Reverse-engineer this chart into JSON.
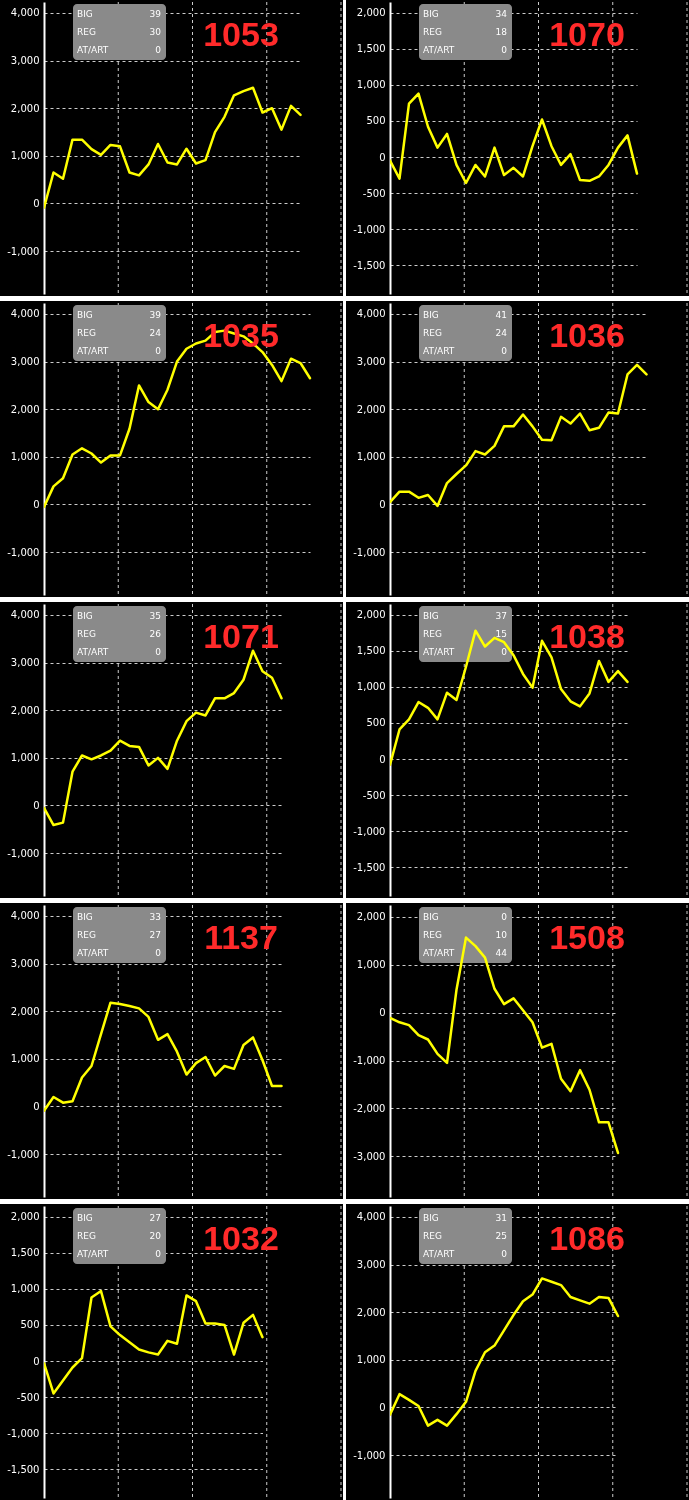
{
  "chart_data": [
    {
      "type": "line",
      "title": "1053",
      "annotations": [
        "BIG",
        "39",
        "REG",
        "30",
        "AT/ART",
        "0"
      ],
      "color": "#ffff00",
      "categories": [
        null,
        null,
        null,
        null,
        null,
        null,
        null,
        null,
        null,
        null,
        null,
        null,
        null,
        null,
        null,
        null,
        null,
        null,
        null,
        null,
        null,
        null,
        null,
        null,
        null,
        null,
        null,
        null
      ],
      "values": [
        -90,
        650,
        520,
        1340,
        1340,
        1140,
        1020,
        1230,
        1200,
        650,
        590,
        820,
        1250,
        860,
        820,
        1150,
        840,
        910,
        1500,
        1820,
        2270,
        2360,
        2430,
        1910,
        2000,
        1550,
        2050,
        1860
      ],
      "ylim": [
        -1900,
        4230
      ],
      "yticks": [
        {
          "value": -1000,
          "label": "-1,000"
        },
        0,
        {
          "value": 1000,
          "label": "1,000"
        },
        {
          "value": 2000,
          "label": "2,000"
        },
        {
          "value": 3000,
          "label": "3,000"
        },
        {
          "value": 4000,
          "label": "4,000"
        }
      ],
      "grid": true,
      "tick_labels": "y"
    },
    {
      "type": "line",
      "title": "1070",
      "annotations": [
        "BIG",
        "34",
        "REG",
        "18",
        "AT/ART",
        "0"
      ],
      "color": "#ffff00",
      "categories": [
        null,
        null,
        null,
        null,
        null,
        null,
        null,
        null,
        null,
        null,
        null,
        null,
        null,
        null,
        null,
        null,
        null,
        null,
        null,
        null,
        null,
        null,
        null,
        null,
        null,
        null,
        null
      ],
      "values": [
        -50,
        -300,
        740,
        880,
        420,
        130,
        320,
        -110,
        -360,
        -110,
        -270,
        130,
        -250,
        -150,
        -270,
        150,
        520,
        150,
        -110,
        40,
        -320,
        -330,
        -270,
        -110,
        130,
        300,
        -230
      ],
      "ylim": [
        -1900,
        2150
      ],
      "yticks": [
        {
          "value": -1500,
          "label": "-1,500"
        },
        {
          "value": -1000,
          "label": "-1,000"
        },
        -500,
        0,
        500,
        {
          "value": 1000,
          "label": "1,000"
        },
        {
          "value": 1500,
          "label": "1,500"
        },
        {
          "value": 2000,
          "label": "2,000"
        }
      ],
      "grid": true,
      "tick_labels": "y"
    },
    {
      "type": "line",
      "title": "1035",
      "annotations": [
        "BIG",
        "39",
        "REG",
        "24",
        "AT/ART",
        "0"
      ],
      "color": "#ffff00",
      "categories": [
        null,
        null,
        null,
        null,
        null,
        null,
        null,
        null,
        null,
        null,
        null,
        null,
        null,
        null,
        null,
        null,
        null,
        null,
        null,
        null,
        null,
        null,
        null,
        null,
        null,
        null,
        null,
        null,
        null
      ],
      "values": [
        -50,
        380,
        550,
        1050,
        1180,
        1070,
        880,
        1030,
        1030,
        1590,
        2500,
        2150,
        2000,
        2410,
        3000,
        3270,
        3380,
        3440,
        3620,
        3650,
        3590,
        3530,
        3380,
        3200,
        2930,
        2590,
        3060,
        2970,
        2650
      ],
      "ylim": [
        -1900,
        4230
      ],
      "yticks": [
        {
          "value": -1000,
          "label": "-1,000"
        },
        0,
        {
          "value": 1000,
          "label": "1,000"
        },
        {
          "value": 2000,
          "label": "2,000"
        },
        {
          "value": 3000,
          "label": "3,000"
        },
        {
          "value": 4000,
          "label": "4,000"
        }
      ],
      "grid": true,
      "tick_labels": "y"
    },
    {
      "type": "line",
      "title": "1036",
      "annotations": [
        "BIG",
        "41",
        "REG",
        "24",
        "AT/ART",
        "0"
      ],
      "color": "#ffff00",
      "categories": [
        null,
        null,
        null,
        null,
        null,
        null,
        null,
        null,
        null,
        null,
        null,
        null,
        null,
        null,
        null,
        null,
        null,
        null,
        null,
        null,
        null,
        null,
        null,
        null,
        null,
        null,
        null,
        null
      ],
      "values": [
        50,
        270,
        270,
        140,
        200,
        -30,
        450,
        640,
        820,
        1120,
        1050,
        1230,
        1640,
        1640,
        1890,
        1640,
        1360,
        1350,
        1840,
        1700,
        1910,
        1560,
        1610,
        1930,
        1910,
        2730,
        2930,
        2730
      ],
      "ylim": [
        -1900,
        4230
      ],
      "yticks": [
        {
          "value": -1000,
          "label": "-1,000"
        },
        0,
        {
          "value": 1000,
          "label": "1,000"
        },
        {
          "value": 2000,
          "label": "2,000"
        },
        {
          "value": 3000,
          "label": "3,000"
        },
        {
          "value": 4000,
          "label": "4,000"
        }
      ],
      "grid": true,
      "tick_labels": "y"
    },
    {
      "type": "line",
      "title": "1071",
      "annotations": [
        "BIG",
        "35",
        "REG",
        "26",
        "AT/ART",
        "0"
      ],
      "color": "#ffff00",
      "categories": [
        null,
        null,
        null,
        null,
        null,
        null,
        null,
        null,
        null,
        null,
        null,
        null,
        null,
        null,
        null,
        null,
        null,
        null,
        null,
        null,
        null,
        null,
        null,
        null,
        null,
        null
      ],
      "values": [
        -50,
        -410,
        -360,
        710,
        1050,
        970,
        1050,
        1150,
        1360,
        1250,
        1230,
        840,
        1000,
        770,
        1360,
        1770,
        1950,
        1890,
        2250,
        2250,
        2360,
        2640,
        3250,
        2820,
        2680,
        2250
      ],
      "ylim": [
        -1900,
        4230
      ],
      "yticks": [
        {
          "value": -1000,
          "label": "-1,000"
        },
        0,
        {
          "value": 1000,
          "label": "1,000"
        },
        {
          "value": 2000,
          "label": "2,000"
        },
        {
          "value": 3000,
          "label": "3,000"
        },
        {
          "value": 4000,
          "label": "4,000"
        }
      ],
      "grid": true,
      "tick_labels": "y"
    },
    {
      "type": "line",
      "title": "1038",
      "annotations": [
        "BIG",
        "37",
        "REG",
        "15",
        "AT/ART",
        "0"
      ],
      "color": "#ffff00",
      "categories": [
        null,
        null,
        null,
        null,
        null,
        null,
        null,
        null,
        null,
        null,
        null,
        null,
        null,
        null,
        null,
        null,
        null,
        null,
        null,
        null,
        null,
        null,
        null,
        null,
        null,
        null
      ],
      "values": [
        -80,
        410,
        550,
        790,
        710,
        550,
        920,
        820,
        1280,
        1780,
        1560,
        1680,
        1620,
        1440,
        1180,
        990,
        1640,
        1410,
        970,
        800,
        730,
        910,
        1360,
        1070,
        1220,
        1070
      ],
      "ylim": [
        -1900,
        2150
      ],
      "yticks": [
        {
          "value": -1500,
          "label": "-1,500"
        },
        {
          "value": -1000,
          "label": "-1,000"
        },
        -500,
        0,
        500,
        {
          "value": 1000,
          "label": "1,000"
        },
        {
          "value": 1500,
          "label": "1,500"
        },
        {
          "value": 2000,
          "label": "2,000"
        }
      ],
      "grid": true,
      "tick_labels": "y"
    },
    {
      "type": "line",
      "title": "1137",
      "annotations": [
        "BIG",
        "33",
        "REG",
        "27",
        "AT/ART",
        "0"
      ],
      "color": "#ffff00",
      "categories": [
        null,
        null,
        null,
        null,
        null,
        null,
        null,
        null,
        null,
        null,
        null,
        null,
        null,
        null,
        null,
        null,
        null,
        null,
        null,
        null,
        null,
        null,
        null,
        null,
        null,
        null
      ],
      "values": [
        -90,
        200,
        80,
        110,
        610,
        850,
        1520,
        2180,
        2150,
        2110,
        2060,
        1880,
        1400,
        1520,
        1150,
        670,
        910,
        1040,
        650,
        850,
        790,
        1290,
        1450,
        970,
        430,
        430
      ],
      "ylim": [
        -1900,
        4230
      ],
      "yticks": [
        {
          "value": -1000,
          "label": "-1,000"
        },
        0,
        {
          "value": 1000,
          "label": "1,000"
        },
        {
          "value": 2000,
          "label": "2,000"
        },
        {
          "value": 3000,
          "label": "3,000"
        },
        {
          "value": 4000,
          "label": "4,000"
        }
      ],
      "grid": true,
      "tick_labels": "y"
    },
    {
      "type": "line",
      "title": "1508",
      "annotations": [
        "BIG",
        "0",
        "REG",
        "10",
        "AT/ART",
        "44"
      ],
      "color": "#ffff00",
      "categories": [
        null,
        null,
        null,
        null,
        null,
        null,
        null,
        null,
        null,
        null,
        null,
        null,
        null,
        null,
        null,
        null,
        null,
        null,
        null,
        null,
        null,
        null,
        null,
        null,
        null
      ],
      "values": [
        -110,
        -200,
        -260,
        -470,
        -560,
        -860,
        -1050,
        480,
        1570,
        1390,
        1150,
        500,
        180,
        300,
        50,
        -200,
        -730,
        -650,
        -1380,
        -1640,
        -1200,
        -1610,
        -2290,
        -2290,
        -2930
      ],
      "ylim": [
        -3850,
        2250
      ],
      "yticks": [
        {
          "value": -3000,
          "label": "-3,000"
        },
        {
          "value": -2000,
          "label": "-2,000"
        },
        {
          "value": -1000,
          "label": "-1,000"
        },
        0,
        {
          "value": 1000,
          "label": "1,000"
        },
        {
          "value": 2000,
          "label": "2,000"
        }
      ],
      "grid": true,
      "tick_labels": "y"
    },
    {
      "type": "line",
      "title": "1032",
      "annotations": [
        "BIG",
        "27",
        "REG",
        "20",
        "AT/ART",
        "0"
      ],
      "color": "#ffff00",
      "categories": [
        null,
        null,
        null,
        null,
        null,
        null,
        null,
        null,
        null,
        null,
        null,
        null,
        null,
        null,
        null,
        null,
        null,
        null,
        null,
        null,
        null,
        null,
        null,
        null
      ],
      "values": [
        -30,
        -450,
        -270,
        -90,
        40,
        880,
        970,
        480,
        360,
        260,
        160,
        120,
        90,
        280,
        240,
        910,
        830,
        520,
        520,
        500,
        90,
        530,
        640,
        330
      ],
      "ylim": [
        -1900,
        2150
      ],
      "yticks": [
        {
          "value": -1500,
          "label": "-1,500"
        },
        {
          "value": -1000,
          "label": "-1,000"
        },
        -500,
        0,
        500,
        {
          "value": 1000,
          "label": "1,000"
        },
        {
          "value": 1500,
          "label": "1,500"
        },
        {
          "value": 2000,
          "label": "2,000"
        }
      ],
      "grid": true,
      "tick_labels": "y"
    },
    {
      "type": "line",
      "title": "1086",
      "annotations": [
        "BIG",
        "31",
        "REG",
        "25",
        "AT/ART",
        "0"
      ],
      "color": "#ffff00",
      "categories": [
        null,
        null,
        null,
        null,
        null,
        null,
        null,
        null,
        null,
        null,
        null,
        null,
        null,
        null,
        null,
        null,
        null,
        null,
        null,
        null,
        null,
        null,
        null,
        null,
        null
      ],
      "values": [
        -150,
        280,
        160,
        30,
        -380,
        -260,
        -380,
        -140,
        120,
        770,
        1160,
        1300,
        1620,
        1940,
        2230,
        2370,
        2710,
        2640,
        2570,
        2320,
        2250,
        2180,
        2320,
        2300,
        1920
      ],
      "ylim": [
        -1900,
        4230
      ],
      "yticks": [
        {
          "value": -1000,
          "label": "-1,000"
        },
        0,
        {
          "value": 1000,
          "label": "1,000"
        },
        {
          "value": 2000,
          "label": "2,000"
        },
        {
          "value": 3000,
          "label": "3,000"
        },
        {
          "value": 4000,
          "label": "4,000"
        }
      ],
      "grid": true,
      "tick_labels": "y"
    }
  ]
}
